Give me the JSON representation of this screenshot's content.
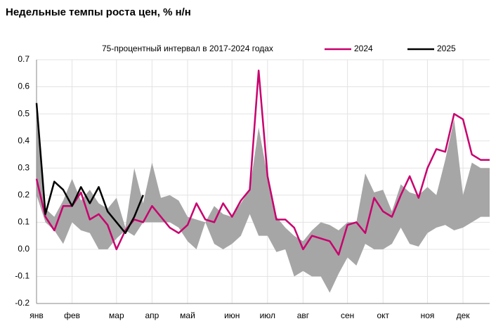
{
  "chart_data": {
    "type": "line",
    "title": "Недельные темпы роста цен, % н/н",
    "categories": [
      "янв",
      null,
      null,
      null,
      "фев",
      null,
      null,
      null,
      null,
      "мар",
      null,
      null,
      null,
      "апр",
      null,
      null,
      null,
      "май",
      null,
      null,
      null,
      null,
      "июн",
      null,
      null,
      null,
      "июл",
      null,
      null,
      null,
      "авг",
      null,
      null,
      null,
      null,
      "сен",
      null,
      null,
      null,
      "окт",
      null,
      null,
      null,
      null,
      "ноя",
      null,
      null,
      null,
      "дек",
      null,
      null,
      null
    ],
    "band": {
      "name": "75-процентный интервал в 2017-2024 годах",
      "color": "#a6a6a6",
      "upper": [
        0.5,
        0.15,
        0.12,
        0.18,
        0.26,
        0.18,
        0.22,
        0.17,
        0.15,
        0.19,
        0.08,
        0.3,
        0.17,
        0.32,
        0.19,
        0.2,
        0.18,
        0.12,
        0.11,
        0.1,
        0.16,
        0.13,
        0.12,
        0.17,
        0.22,
        0.45,
        0.27,
        0.12,
        0.08,
        0.05,
        0.03,
        0.07,
        0.1,
        0.09,
        0.07,
        0.1,
        0.1,
        0.28,
        0.21,
        0.22,
        0.14,
        0.24,
        0.21,
        0.2,
        0.23,
        0.2,
        0.33,
        0.48,
        0.2,
        0.32,
        0.3,
        0.3
      ],
      "lower": [
        0.2,
        0.1,
        0.07,
        0.02,
        0.1,
        0.07,
        0.06,
        0.0,
        0.0,
        0.04,
        0.07,
        0.05,
        0.1,
        0.1,
        0.1,
        0.1,
        0.08,
        0.03,
        0.0,
        0.1,
        0.02,
        0.0,
        0.02,
        0.05,
        0.13,
        0.05,
        0.05,
        -0.01,
        0.0,
        -0.1,
        -0.08,
        -0.1,
        -0.1,
        -0.16,
        -0.09,
        -0.03,
        -0.06,
        0.02,
        0.0,
        0.0,
        0.02,
        0.08,
        0.02,
        0.01,
        0.06,
        0.08,
        0.09,
        0.07,
        0.08,
        0.1,
        0.12,
        0.12
      ]
    },
    "series": [
      {
        "name": "2024",
        "color": "#c8006e",
        "values": [
          0.26,
          0.12,
          0.07,
          0.16,
          0.16,
          0.21,
          0.11,
          0.13,
          0.09,
          0.0,
          0.07,
          0.11,
          0.1,
          0.16,
          0.12,
          0.08,
          0.06,
          0.09,
          0.17,
          0.11,
          0.1,
          0.17,
          0.12,
          0.18,
          0.22,
          0.66,
          0.27,
          0.11,
          0.11,
          0.08,
          0.0,
          0.05,
          0.04,
          0.03,
          -0.02,
          0.09,
          0.1,
          0.06,
          0.19,
          0.14,
          0.12,
          0.2,
          0.27,
          0.19,
          0.3,
          0.37,
          0.36,
          0.5,
          0.48,
          0.35,
          0.33,
          0.33
        ]
      },
      {
        "name": "2025",
        "color": "#000000",
        "values": [
          0.54,
          0.13,
          0.25,
          0.22,
          0.16,
          0.23,
          0.17,
          0.23,
          0.14,
          0.1,
          0.06,
          0.12,
          0.2,
          null,
          null,
          null,
          null,
          null,
          null,
          null,
          null,
          null,
          null,
          null,
          null,
          null,
          null,
          null,
          null,
          null,
          null,
          null,
          null,
          null,
          null,
          null,
          null,
          null,
          null,
          null,
          null,
          null,
          null,
          null,
          null,
          null,
          null,
          null,
          null,
          null,
          null,
          null
        ]
      }
    ],
    "ylim": [
      -0.2,
      0.7
    ],
    "yticks": [
      0.7,
      0.6,
      0.5,
      0.4,
      0.3,
      0.2,
      0.1,
      {
        "value": 0,
        "label": "0.0"
      },
      -0.1,
      -0.2
    ],
    "grid": true
  }
}
